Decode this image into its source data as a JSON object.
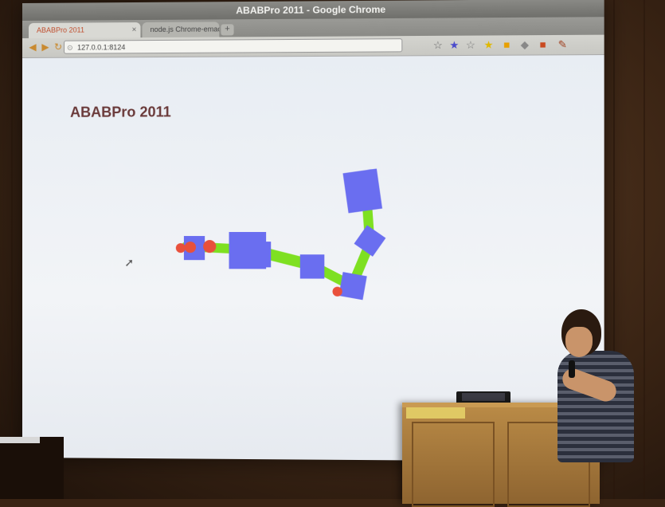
{
  "browser": {
    "window_title": "ABABPro 2011 - Google Chrome",
    "tabs": [
      {
        "label": "ABABPro 2011",
        "active": true
      },
      {
        "label": "node.js Chrome-emacs: ...",
        "active": false
      }
    ],
    "address_bar": "127.0.0.1:8124"
  },
  "page": {
    "title": "ABABPro 2011"
  },
  "colors": {
    "square": "#6a6ef0",
    "link": "#7ee021",
    "joint": "#e9503b",
    "page_bg": "#eef1f5",
    "title": "#6a3a3a"
  },
  "icons": [
    "back-arrow-icon",
    "forward-arrow-icon",
    "reload-icon",
    "star-icon",
    "extension-icon",
    "wrench-icon",
    "mouse-cursor-icon"
  ]
}
